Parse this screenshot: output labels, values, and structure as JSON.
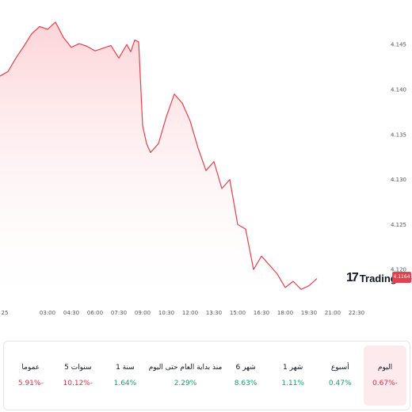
{
  "chart_data": {
    "type": "area",
    "x_ticks": [
      "25",
      "03:00",
      "04:30",
      "06:00",
      "07:30",
      "09:00",
      "10:30",
      "12:00",
      "13:30",
      "15:00",
      "16:30",
      "18:00",
      "19:30",
      "21:00",
      "22:30"
    ],
    "y_ticks": [
      4.12,
      4.125,
      4.13,
      4.135,
      4.14,
      4.145
    ],
    "y_tick_labels": [
      "4.120",
      "4.125",
      "4.130",
      "4.135",
      "4.140",
      "4.145"
    ],
    "ylim": [
      4.1172,
      4.1496
    ],
    "x_range": [
      "00:00",
      "23:30"
    ],
    "series": [
      {
        "x": [
          "00:00",
          "00:30",
          "01:00",
          "01:30",
          "02:00",
          "02:30",
          "03:00",
          "03:30",
          "04:00",
          "04:30",
          "05:00",
          "05:30",
          "06:00",
          "06:30",
          "07:00",
          "07:30",
          "08:00",
          "08:15",
          "08:30",
          "08:45",
          "09:00",
          "09:15",
          "09:30",
          "10:00",
          "10:30",
          "11:00",
          "11:30",
          "12:00",
          "12:30",
          "13:00",
          "13:30",
          "14:00",
          "14:30",
          "15:00",
          "15:30",
          "16:00",
          "16:30",
          "17:00",
          "17:30",
          "18:00",
          "18:30",
          "19:00",
          "19:30",
          "20:00"
        ],
        "values": [
          4.1415,
          4.142,
          4.1435,
          4.1448,
          4.1462,
          4.147,
          4.1467,
          4.1475,
          4.1458,
          4.1447,
          4.1451,
          4.1448,
          4.1443,
          4.1446,
          4.1449,
          4.1435,
          4.145,
          4.1442,
          4.1455,
          4.1453,
          4.136,
          4.134,
          4.133,
          4.134,
          4.137,
          4.1395,
          4.1385,
          4.1365,
          4.1335,
          4.131,
          4.132,
          4.129,
          4.13,
          4.125,
          4.1245,
          4.12,
          4.1215,
          4.1205,
          4.1195,
          4.118,
          4.1187,
          4.1178,
          4.1182,
          4.119
        ]
      }
    ],
    "last_price": "4.1164",
    "grid": false,
    "legend": "none",
    "title": "",
    "xlabel": "",
    "ylabel": ""
  },
  "branding": {
    "logo_mark": "17",
    "logo_word": "TradingView"
  },
  "colors": {
    "line": "#e0424f",
    "fill": "#fcd2d6",
    "negative": "#d0324a",
    "positive": "#1a9a6c",
    "active_bg": "#fdeaec"
  },
  "performance": [
    {
      "label": "اليوم",
      "value": "0.67%-",
      "trend": "neg",
      "active": true
    },
    {
      "label": "أسبوع",
      "value": "0.47%",
      "trend": "pos",
      "active": false
    },
    {
      "label": "1 شهر",
      "value": "1.11%",
      "trend": "pos",
      "active": false
    },
    {
      "label": "6 شهر",
      "value": "8.63%",
      "trend": "pos",
      "active": false
    },
    {
      "label": "منذ بداية العام حتى اليوم",
      "value": "2.29%",
      "trend": "pos",
      "active": false
    },
    {
      "label": "1 سنة",
      "value": "1.64%",
      "trend": "pos",
      "active": false
    },
    {
      "label": "5 سنوات",
      "value": "10.12%-",
      "trend": "neg",
      "active": false
    },
    {
      "label": "عموما",
      "value": "5.91%-",
      "trend": "neg",
      "active": false
    }
  ]
}
